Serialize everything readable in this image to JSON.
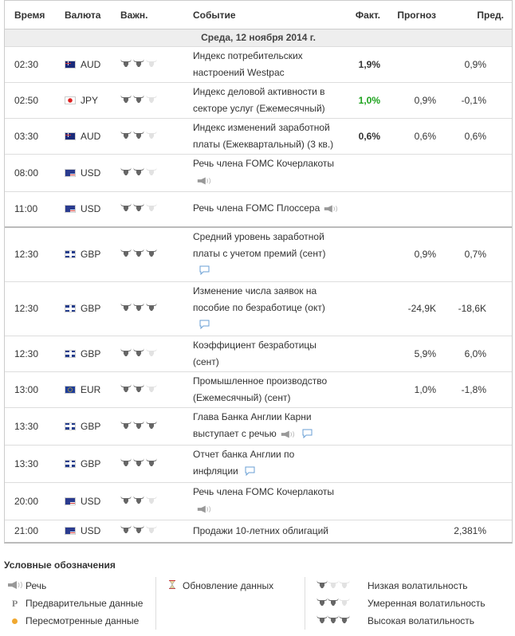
{
  "header": {
    "time": "Время",
    "currency": "Валюта",
    "importance": "Важн.",
    "event": "Событие",
    "actual": "Факт.",
    "forecast": "Прогноз",
    "previous": "Пред."
  },
  "date": "Среда, 12 ноября 2014 г.",
  "colors": {
    "bull_on": "#666666",
    "bull_off": "#e2e2e2",
    "green": "#1ca21c",
    "comment": "#6a9fd4"
  },
  "rows": [
    {
      "time": "02:30",
      "flag": "au",
      "currency": "AUD",
      "importance": 2,
      "event": "Индекс потребительских настроений Westpac",
      "actual": "1,9%",
      "actual_color": "",
      "forecast": "",
      "previous": "0,9%"
    },
    {
      "time": "02:50",
      "flag": "jp",
      "currency": "JPY",
      "importance": 2,
      "event": "Индекс деловой активности в секторе услуг (Ежемесячный)",
      "actual": "1,0%",
      "actual_color": "green",
      "forecast": "0,9%",
      "previous": "-0,1%"
    },
    {
      "time": "03:30",
      "flag": "au",
      "currency": "AUD",
      "importance": 2,
      "event": "Индекс изменений заработной платы (Ежеквартальный) (3 кв.)",
      "actual": "0,6%",
      "actual_color": "",
      "forecast": "0,6%",
      "previous": "0,6%"
    },
    {
      "time": "08:00",
      "flag": "us",
      "currency": "USD",
      "importance": 2,
      "event": "Речь члена FOMC Кочерлакоты",
      "speech": true,
      "actual": "",
      "forecast": "",
      "previous": ""
    },
    {
      "time": "11:00",
      "flag": "us",
      "currency": "USD",
      "importance": 2,
      "event": "Речь члена FOMC Плоссера",
      "speech": true,
      "actual": "",
      "forecast": "",
      "previous": ""
    },
    {
      "time": "12:30",
      "flag": "gb",
      "currency": "GBP",
      "importance": 3,
      "event": "Средний уровень заработной платы с учетом премий (сент)",
      "comment": true,
      "actual": "",
      "forecast": "0,9%",
      "previous": "0,7%",
      "sep": true
    },
    {
      "time": "12:30",
      "flag": "gb",
      "currency": "GBP",
      "importance": 3,
      "event": "Изменение числа заявок на пособие по безработице (окт)",
      "comment": true,
      "actual": "",
      "forecast": "-24,9K",
      "previous": "-18,6K"
    },
    {
      "time": "12:30",
      "flag": "gb",
      "currency": "GBP",
      "importance": 2,
      "event": "Коэффициент безработицы (сент)",
      "actual": "",
      "forecast": "5,9%",
      "previous": "6,0%"
    },
    {
      "time": "13:00",
      "flag": "eu",
      "currency": "EUR",
      "importance": 2,
      "event": "Промышленное производство (Ежемесячный) (сент)",
      "actual": "",
      "forecast": "1,0%",
      "previous": "-1,8%"
    },
    {
      "time": "13:30",
      "flag": "gb",
      "currency": "GBP",
      "importance": 3,
      "event": "Глава Банка Англии Карни выступает с речью",
      "speech": true,
      "comment": true,
      "actual": "",
      "forecast": "",
      "previous": ""
    },
    {
      "time": "13:30",
      "flag": "gb",
      "currency": "GBP",
      "importance": 3,
      "event": "Отчет банка Англии по инфляции",
      "comment": true,
      "actual": "",
      "forecast": "",
      "previous": ""
    },
    {
      "time": "20:00",
      "flag": "us",
      "currency": "USD",
      "importance": 2,
      "event": "Речь члена FOMC Кочерлакоты",
      "speech": true,
      "actual": "",
      "forecast": "",
      "previous": ""
    },
    {
      "time": "21:00",
      "flag": "us",
      "currency": "USD",
      "importance": 2,
      "event": "Продажи 10-летних облигаций",
      "actual": "",
      "forecast": "",
      "previous": "2,381%"
    }
  ],
  "legend": {
    "title": "Условные обозначения",
    "speech": "Речь",
    "preliminary_icon": "P",
    "preliminary": "Предварительные данные",
    "revised": "Пересмотренные данные",
    "update": "Обновление данных",
    "low": "Низкая волатильность",
    "medium": "Умеренная волатильность",
    "high": "Высокая волатильность"
  }
}
